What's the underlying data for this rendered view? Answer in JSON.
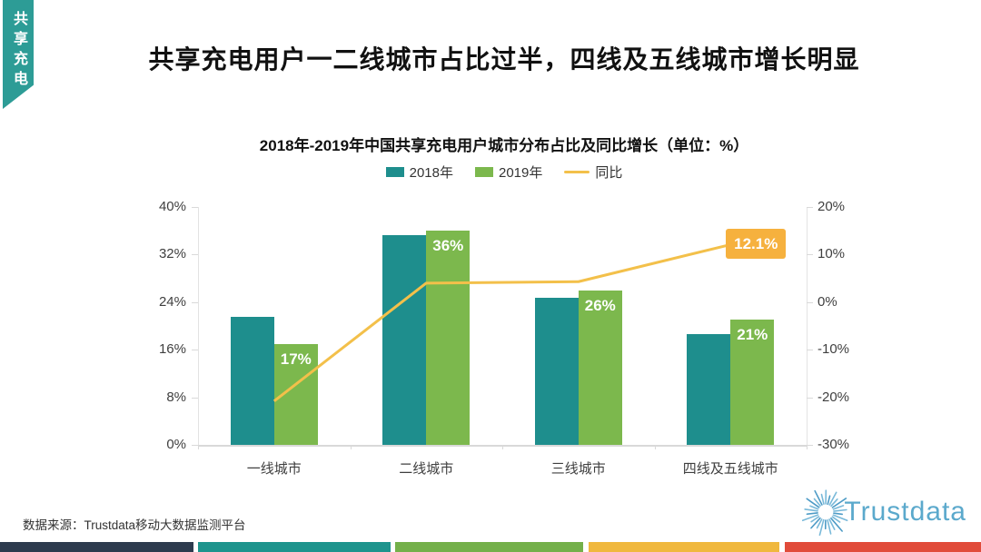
{
  "ribbon": {
    "label": "共享充电",
    "color": "#2d9c96"
  },
  "title": "共享充电用户一二线城市占比过半，四线及五线城市增长明显",
  "chart": {
    "subtitle": "2018年-2019年中国共享充电用户城市分布占比及同比增长（单位：%）",
    "legend": [
      {
        "label": "2018年",
        "color": "#1e8e8d",
        "type": "rect"
      },
      {
        "label": "2019年",
        "color": "#7cb84d",
        "type": "rect"
      },
      {
        "label": "同比",
        "color": "#f3c04a",
        "type": "line"
      }
    ]
  },
  "chart_data": {
    "type": "bar+line",
    "categories": [
      "一线城市",
      "二线城市",
      "三线城市",
      "四线及五线城市"
    ],
    "series": [
      {
        "name": "2018年",
        "type": "bar",
        "color": "#1e8e8d",
        "values": [
          21.5,
          35.2,
          24.8,
          18.6
        ],
        "labels": [
          null,
          null,
          null,
          null
        ]
      },
      {
        "name": "2019年",
        "type": "bar",
        "color": "#7cb84d",
        "values": [
          17,
          36,
          26,
          21
        ],
        "labels": [
          "17%",
          "36%",
          "26%",
          "21%"
        ]
      },
      {
        "name": "同比",
        "type": "line",
        "color": "#f3c04a",
        "values": [
          -20.8,
          4.0,
          4.3,
          12.1
        ],
        "labels": [
          null,
          null,
          null,
          "12.1%"
        ]
      }
    ],
    "left_axis": {
      "ticks": [
        "40%",
        "32%",
        "24%",
        "16%",
        "8%",
        "0%"
      ],
      "range": [
        0,
        40
      ]
    },
    "right_axis": {
      "ticks": [
        "20%",
        "10%",
        "0%",
        "-10%",
        "-20%",
        "-30%"
      ],
      "range": [
        -30,
        20
      ]
    },
    "grid": "off",
    "legend_position": "top-center"
  },
  "source": "数据来源：Trustdata移动大数据监测平台",
  "logo": {
    "text": "Trustdata",
    "color": "#5ba9cc"
  },
  "footer_bar": {
    "colors": [
      "#2d3b4e",
      "#1e948d",
      "#74b04a",
      "#f0b83e",
      "#e14b3a"
    ]
  }
}
